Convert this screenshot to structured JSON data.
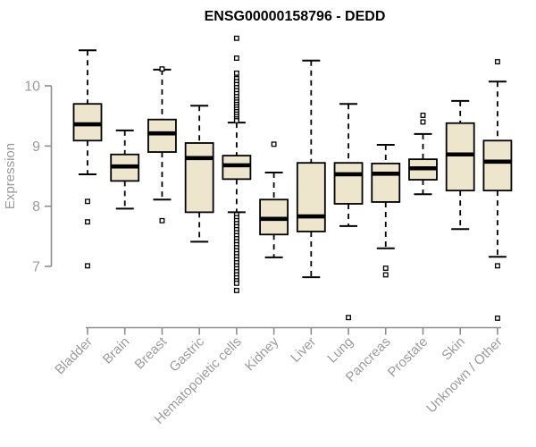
{
  "title": "ENSG00000158796 - DEDD",
  "chart_data": {
    "type": "boxplot",
    "title": "ENSG00000158796 - DEDD",
    "xlabel": "",
    "ylabel": "Expression",
    "yticks": [
      7,
      8,
      9,
      10
    ],
    "ylim": [
      6.0,
      10.9
    ],
    "grid": false,
    "legend": "none",
    "categories": [
      "Bladder",
      "Brain",
      "Breast",
      "Gastric",
      "Hematopoietic cells",
      "Kidney",
      "Liver",
      "Lung",
      "Pancreas",
      "Prostate",
      "Skin",
      "Unknown / Other"
    ],
    "series": [
      {
        "name": "Bladder",
        "whisker_low": 8.53,
        "q1": 9.09,
        "median": 9.36,
        "q3": 9.7,
        "whisker_high": 10.59,
        "outliers": [
          8.08,
          7.74,
          7.01
        ]
      },
      {
        "name": "Brain",
        "whisker_low": 7.96,
        "q1": 8.42,
        "median": 8.66,
        "q3": 8.86,
        "whisker_high": 9.26,
        "outliers": []
      },
      {
        "name": "Breast",
        "whisker_low": 8.11,
        "q1": 8.9,
        "median": 9.21,
        "q3": 9.44,
        "whisker_high": 10.27,
        "outliers": [
          10.28,
          7.76
        ]
      },
      {
        "name": "Gastric",
        "whisker_low": 7.41,
        "q1": 7.9,
        "median": 8.8,
        "q3": 9.05,
        "whisker_high": 9.67,
        "outliers": []
      },
      {
        "name": "Hematopoietic cells",
        "whisker_low": 7.9,
        "q1": 8.45,
        "median": 8.68,
        "q3": 8.84,
        "whisker_high": 9.39,
        "outliers": [
          10.79,
          10.46,
          10.21,
          10.12,
          10.07,
          10.02,
          9.97,
          9.92,
          9.87,
          9.82,
          9.77,
          9.73,
          9.69,
          9.65,
          9.61,
          9.57,
          9.53,
          9.49,
          9.45,
          9.42,
          7.86,
          7.81,
          7.76,
          7.71,
          7.66,
          7.61,
          7.56,
          7.51,
          7.46,
          7.41,
          7.36,
          7.31,
          7.26,
          7.21,
          7.16,
          7.11,
          7.06,
          7.01,
          6.96,
          6.91,
          6.86,
          6.81,
          6.76,
          6.72,
          6.6
        ]
      },
      {
        "name": "Kidney",
        "whisker_low": 7.15,
        "q1": 7.53,
        "median": 7.79,
        "q3": 8.11,
        "whisker_high": 8.56,
        "outliers": [
          9.03
        ]
      },
      {
        "name": "Liver",
        "whisker_low": 6.82,
        "q1": 7.58,
        "median": 7.83,
        "q3": 8.72,
        "whisker_high": 10.42,
        "outliers": []
      },
      {
        "name": "Lung",
        "whisker_low": 7.67,
        "q1": 8.04,
        "median": 8.53,
        "q3": 8.72,
        "whisker_high": 9.7,
        "outliers": [
          6.15
        ]
      },
      {
        "name": "Pancreas",
        "whisker_low": 7.3,
        "q1": 8.07,
        "median": 8.54,
        "q3": 8.71,
        "whisker_high": 9.02,
        "outliers": [
          6.97,
          6.86
        ]
      },
      {
        "name": "Prostate",
        "whisker_low": 8.2,
        "q1": 8.44,
        "median": 8.63,
        "q3": 8.78,
        "whisker_high": 9.2,
        "outliers": [
          9.51,
          9.4
        ]
      },
      {
        "name": "Skin",
        "whisker_low": 7.62,
        "q1": 8.26,
        "median": 8.86,
        "q3": 9.38,
        "whisker_high": 9.75,
        "outliers": []
      },
      {
        "name": "Unknown / Other",
        "whisker_low": 7.16,
        "q1": 8.26,
        "median": 8.74,
        "q3": 9.09,
        "whisker_high": 10.07,
        "outliers": [
          10.4,
          7.01,
          6.14
        ]
      }
    ],
    "colors": {
      "box_fill": "#EDE6CD",
      "box_stroke": "#000000",
      "median": "#000000",
      "whisker": "#000000",
      "outlier_stroke": "#000000",
      "outlier_fill": "#FFFFFF",
      "axis": "#8d8d8d",
      "text_gray": "#9b9b9b",
      "title": "#000000",
      "background": "#FFFFFF"
    }
  }
}
